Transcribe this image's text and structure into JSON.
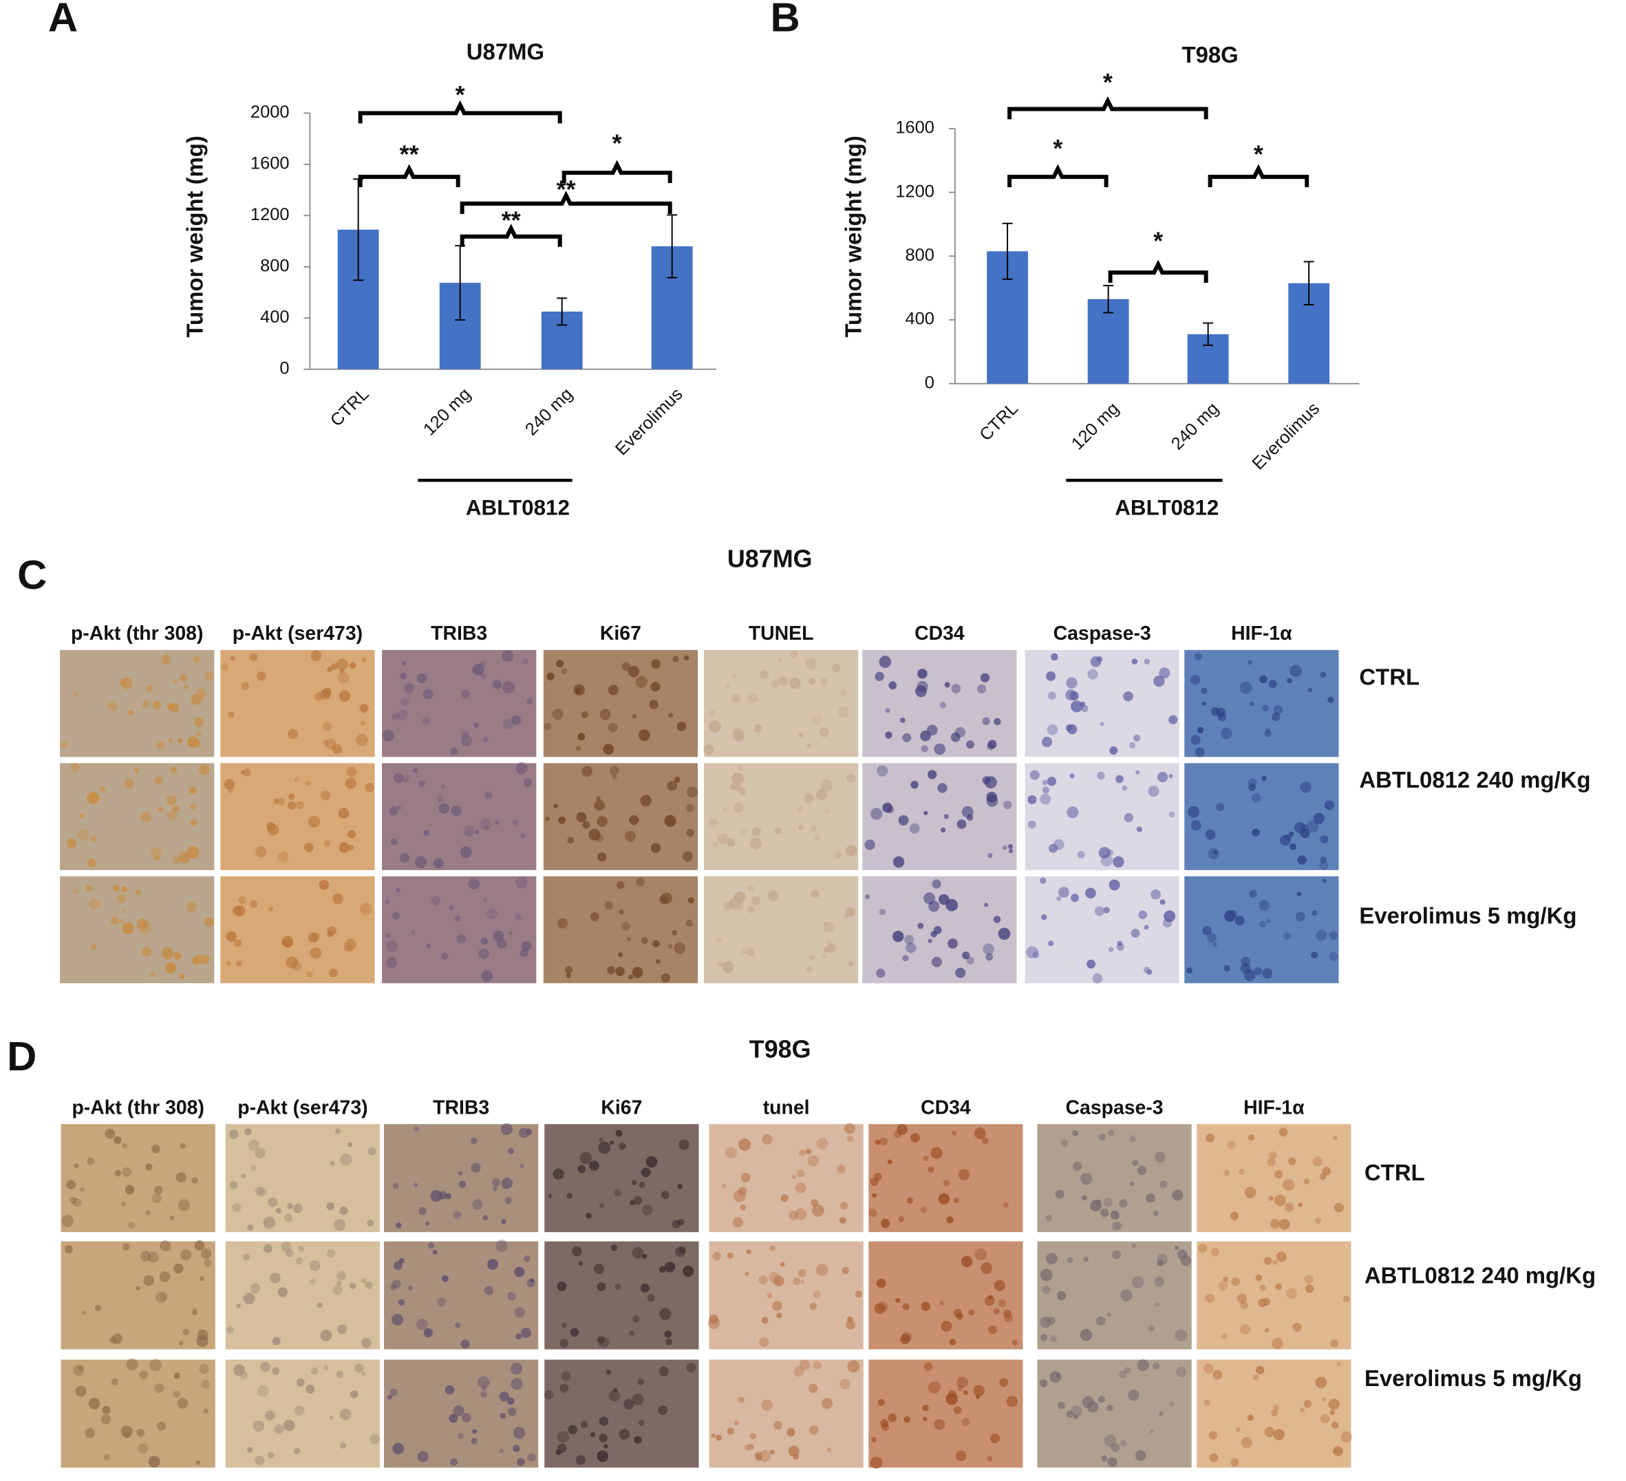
{
  "chart_data": [
    {
      "type": "bar",
      "panel": "A",
      "title": "U87MG",
      "y_label": "Tumor weight (mg)",
      "categories": [
        "CTRL",
        "120 mg",
        "240 mg",
        "Everolimus"
      ],
      "values": [
        1090,
        675,
        450,
        960
      ],
      "errors": [
        395,
        290,
        105,
        245
      ],
      "color": "#4472c4",
      "ylim": [
        0,
        2000
      ],
      "yticks": [
        0,
        400,
        800,
        1200,
        1600,
        2000
      ],
      "group_label": "ABLT0812",
      "annotations": [
        "*",
        "**",
        "**",
        "**",
        "*"
      ]
    },
    {
      "type": "bar",
      "panel": "B",
      "title": "T98G",
      "y_label": "Tumor weight (mg)",
      "categories": [
        "CTRL",
        "120 mg",
        "240 mg",
        "Everolimus"
      ],
      "values": [
        830,
        530,
        310,
        630
      ],
      "errors": [
        175,
        85,
        70,
        135
      ],
      "color": "#4472c4",
      "ylim": [
        0,
        1600
      ],
      "yticks": [
        0,
        400,
        800,
        1200,
        1600
      ],
      "group_label": "ABLT0812",
      "annotations": [
        "*",
        "*",
        "*",
        "*"
      ]
    }
  ],
  "panels": [
    {
      "letter": "C",
      "title": "U87MG",
      "columns": [
        "p-Akt (thr 308)",
        "p-Akt (ser473)",
        "TRIB3",
        "Ki67",
        "TUNEL",
        "CD34",
        "Caspase-3",
        "HIF-1α"
      ],
      "rows": [
        "CTRL",
        "ABTL0812 240 mg/Kg",
        "Everolimus 5 mg/Kg"
      ]
    },
    {
      "letter": "D",
      "title": "T98G",
      "columns": [
        "p-Akt (thr 308)",
        "p-Akt (ser473)",
        "TRIB3",
        "Ki67",
        "tunel",
        "CD34",
        "Caspase-3",
        "HIF-1α"
      ],
      "rows": [
        "CTRL",
        "ABTL0812 240 mg/Kg",
        "Everolimus 5 mg/Kg"
      ]
    }
  ]
}
